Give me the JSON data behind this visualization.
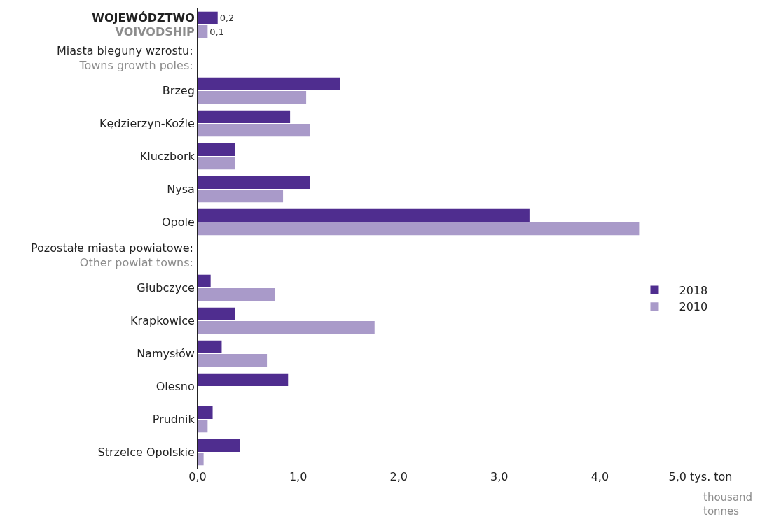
{
  "chart_data": {
    "type": "bar",
    "orientation": "horizontal",
    "categories": [
      "WOJEWÓDZTWO\nVOIVODSHIP",
      null,
      "Brzeg",
      "Kędzierzyn-Koźle",
      "Kluczbork",
      "Nysa",
      "Opole",
      null,
      "Głubczyce",
      "Krapkowice",
      "Namysłów",
      "Olesno",
      "Prudnik",
      "Strzelce Opolskie"
    ],
    "series": [
      {
        "name": "2018",
        "color": "#4f2d8f",
        "values": [
          0.2,
          null,
          1.42,
          0.92,
          0.37,
          1.12,
          3.3,
          null,
          0.13,
          0.37,
          0.24,
          0.9,
          0.15,
          0.42
        ],
        "value_labels": [
          "0,2",
          null,
          null,
          null,
          null,
          null,
          null,
          null,
          null,
          null,
          null,
          null,
          null,
          null
        ]
      },
      {
        "name": "2010",
        "color": "#a99ac9",
        "values": [
          0.1,
          null,
          1.08,
          1.12,
          0.37,
          0.85,
          4.39,
          null,
          0.77,
          1.76,
          0.69,
          null,
          0.1,
          0.06
        ],
        "value_labels": [
          "0,1",
          null,
          null,
          null,
          null,
          null,
          null,
          null,
          null,
          null,
          null,
          null,
          null,
          null
        ]
      }
    ],
    "xlim": [
      0,
      5
    ],
    "xticks": [
      {
        "value": 0,
        "label": "0,0"
      },
      {
        "value": 1,
        "label": "1,0"
      },
      {
        "value": 2,
        "label": "2,0"
      },
      {
        "value": 3,
        "label": "3,0"
      },
      {
        "value": 4,
        "label": "4,0"
      },
      {
        "value": 5,
        "label": "5,0 tys. ton"
      }
    ],
    "xlabel": "thousand tonnes",
    "annotations": [
      "Miasta bieguny wzrostu:\nTowns growth poles:",
      "Pozostałe miasta powiatowe:\nOther powiat towns:"
    ],
    "grid": "x",
    "legend": "right"
  }
}
